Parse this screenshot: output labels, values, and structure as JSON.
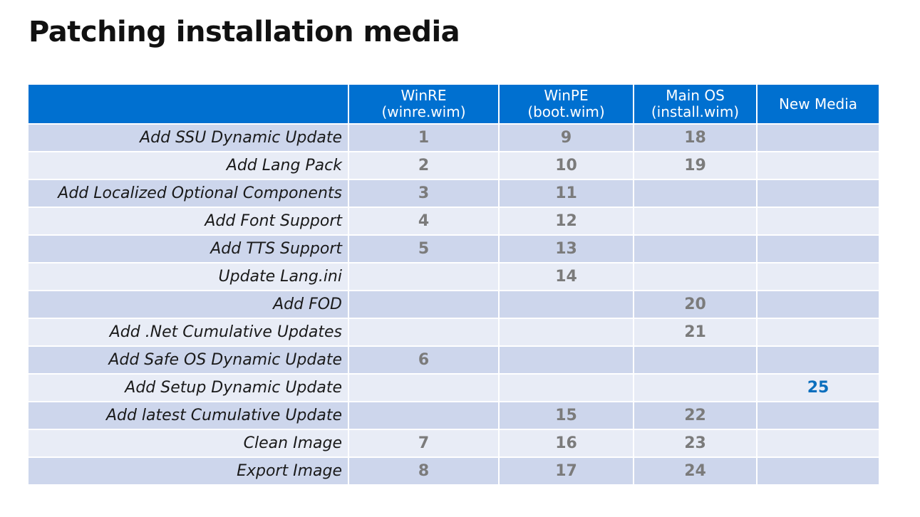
{
  "title": "Patching installation media",
  "table": {
    "headers": [
      {
        "line1": "",
        "line2": ""
      },
      {
        "line1": "WinRE",
        "line2": "(winre.wim)"
      },
      {
        "line1": "WinPE",
        "line2": "(boot.wim)"
      },
      {
        "line1": "Main OS",
        "line2": "(install.wim)"
      },
      {
        "line1": "New Media",
        "line2": ""
      }
    ],
    "rows": [
      {
        "label": "Add SSU Dynamic Update",
        "cells": [
          "1",
          "9",
          "18",
          ""
        ]
      },
      {
        "label": "Add Lang Pack",
        "cells": [
          "2",
          "10",
          "19",
          ""
        ]
      },
      {
        "label": "Add Localized Optional Components",
        "cells": [
          "3",
          "11",
          "",
          ""
        ]
      },
      {
        "label": "Add Font Support",
        "cells": [
          "4",
          "12",
          "",
          ""
        ]
      },
      {
        "label": "Add TTS Support",
        "cells": [
          "5",
          "13",
          "",
          ""
        ]
      },
      {
        "label": "Update Lang.ini",
        "cells": [
          "",
          "14",
          "",
          ""
        ]
      },
      {
        "label": "Add FOD",
        "cells": [
          "",
          "",
          "20",
          ""
        ]
      },
      {
        "label": "Add .Net Cumulative Updates",
        "cells": [
          "",
          "",
          "21",
          ""
        ]
      },
      {
        "label": "Add Safe OS Dynamic Update",
        "cells": [
          "6",
          "",
          "",
          ""
        ]
      },
      {
        "label": "Add Setup Dynamic Update",
        "cells": [
          "",
          "",
          "",
          "25"
        ]
      },
      {
        "label": "Add latest Cumulative Update",
        "cells": [
          "",
          "15",
          "22",
          ""
        ]
      },
      {
        "label": "Clean Image",
        "cells": [
          "7",
          "16",
          "23",
          ""
        ]
      },
      {
        "label": "Export Image",
        "cells": [
          "8",
          "17",
          "24",
          ""
        ]
      }
    ]
  },
  "colors": {
    "header_bg": "#0070d0",
    "row_odd": "#cdd6ec",
    "row_even": "#e8ecf6",
    "number_text": "#7b7b7b",
    "accent_number": "#0a6ebd"
  }
}
